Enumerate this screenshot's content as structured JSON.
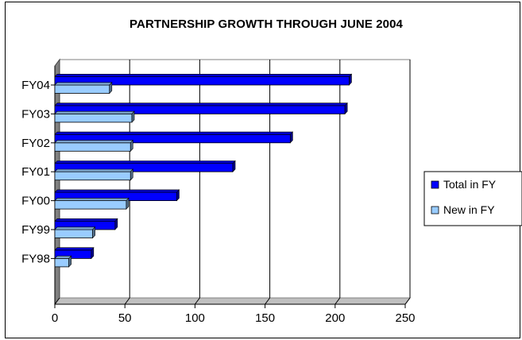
{
  "chart_data": {
    "type": "bar",
    "orientation": "horizontal",
    "title": "PARTNERSHIP GROWTH THROUGH JUNE 2004",
    "categories": [
      "FY98",
      "FY99",
      "FY00",
      "FY01",
      "FY02",
      "FY03",
      "FY04"
    ],
    "series": [
      {
        "name": "Total in FY",
        "values": [
          26,
          43,
          87,
          127,
          168,
          207,
          210
        ],
        "color": "#0000ff"
      },
      {
        "name": "New in FY",
        "values": [
          10,
          27,
          51,
          54,
          54,
          55,
          39
        ],
        "color": "#99ccff"
      }
    ],
    "xlim": [
      0,
      250
    ],
    "xticks": [
      "0",
      "50",
      "100",
      "150",
      "200",
      "250"
    ],
    "grid": true,
    "legend": "right",
    "xlabel": "",
    "ylabel": ""
  }
}
